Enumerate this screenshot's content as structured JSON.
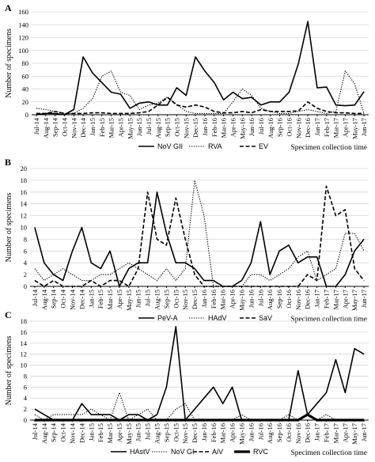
{
  "chart_data": [
    {
      "type": "line",
      "panel_label": "A",
      "ylabel": "Number of specimens",
      "xlabel": "Specimen collection time",
      "ylim": [
        0,
        160
      ],
      "ytick_step": 20,
      "grid": "horizontal",
      "legend_position": "bottom",
      "categories": [
        "Jul-14",
        "Aug-14",
        "Sep-14",
        "Oct-14",
        "Nov-14",
        "Dec-14",
        "Jan-15",
        "Feb-15",
        "Mar-15",
        "Apr-15",
        "May-15",
        "Jun-15",
        "Jul-15",
        "Aug-15",
        "Sep-15",
        "Oct-15",
        "Nov-15",
        "Dec-15",
        "Jan-16",
        "Feb-16",
        "Mar-16",
        "Apr-16",
        "May-16",
        "Jun-16",
        "Jul-16",
        "Aug-16",
        "Sep-16",
        "Oct-16",
        "Nov-16",
        "Dec-16",
        "Jan-17",
        "Feb-17",
        "Mar-17",
        "Apr-17",
        "May-17",
        "Jun-17"
      ],
      "series": [
        {
          "name": "NoV GII",
          "style": "solid",
          "values": [
            0,
            2,
            2,
            0,
            8,
            90,
            65,
            50,
            35,
            32,
            10,
            18,
            20,
            15,
            15,
            42,
            30,
            90,
            68,
            50,
            23,
            35,
            25,
            27,
            15,
            20,
            20,
            35,
            80,
            145,
            42,
            43,
            15,
            14,
            15,
            36
          ]
        },
        {
          "name": "RVA",
          "style": "dotted",
          "values": [
            10,
            8,
            5,
            2,
            2,
            10,
            25,
            60,
            68,
            35,
            30,
            8,
            15,
            18,
            28,
            16,
            5,
            2,
            2,
            2,
            2,
            20,
            40,
            30,
            10,
            5,
            2,
            2,
            5,
            8,
            5,
            2,
            5,
            68,
            48,
            2
          ]
        },
        {
          "name": "EV",
          "style": "dashed",
          "values": [
            2,
            2,
            5,
            2,
            2,
            2,
            3,
            3,
            2,
            2,
            2,
            3,
            5,
            15,
            27,
            15,
            12,
            15,
            12,
            5,
            3,
            3,
            5,
            3,
            8,
            5,
            5,
            5,
            6,
            20,
            10,
            5,
            3,
            3,
            2,
            2
          ]
        }
      ]
    },
    {
      "type": "line",
      "panel_label": "B",
      "ylabel": "Number of specimens",
      "xlabel": "Specimen collection time",
      "ylim": [
        0,
        20
      ],
      "ytick_step": 2,
      "grid": "horizontal",
      "legend_position": "bottom",
      "categories": [
        "Jul-14",
        "Aug-14",
        "Sep-14",
        "Oct-14",
        "Nov-14",
        "Dec-14",
        "Jan-15",
        "Feb-15",
        "Mar-15",
        "Apr-15",
        "May-15",
        "Jun-15",
        "Jul-15",
        "Aug-15",
        "Sep-15",
        "Oct-15",
        "Nov-15",
        "Dec-15",
        "Jan-16",
        "Feb-16",
        "Mar-16",
        "Apr-16",
        "May-16",
        "Jun-16",
        "Jul-16",
        "Aug-16",
        "Sep-16",
        "Oct-16",
        "Nov-16",
        "Dec-16",
        "Jan-17",
        "Feb-17",
        "Mar-17",
        "Apr-17",
        "May-17",
        "Jun-17"
      ],
      "series": [
        {
          "name": "PeV-A",
          "style": "solid",
          "values": [
            10,
            4,
            2,
            1,
            6,
            10,
            4,
            3,
            6,
            0,
            3,
            4,
            4,
            16,
            9,
            4,
            4,
            3,
            1,
            1,
            0,
            0,
            1,
            4,
            11,
            2,
            6,
            7,
            4,
            5,
            5,
            0,
            0,
            2,
            6,
            8
          ]
        },
        {
          "name": "HAdV",
          "style": "dotted",
          "values": [
            3,
            1,
            2,
            3,
            2,
            1,
            1,
            2,
            2,
            3,
            4,
            3,
            2,
            1,
            3,
            1,
            3,
            18,
            12,
            0,
            0,
            0,
            0,
            2,
            2,
            1,
            2,
            3,
            5,
            6,
            1,
            2,
            3,
            9,
            9,
            6
          ]
        },
        {
          "name": "SaV",
          "style": "dashed",
          "values": [
            1,
            0,
            1,
            0,
            0,
            0,
            1,
            0,
            1,
            1,
            0,
            3,
            16,
            8,
            7,
            15,
            8,
            2,
            0,
            0,
            0,
            0,
            0,
            0,
            0,
            0,
            0,
            0,
            0,
            2,
            1,
            17,
            12,
            13,
            3,
            1
          ]
        }
      ]
    },
    {
      "type": "line",
      "panel_label": "C",
      "ylabel": "Number of specimens",
      "xlabel": "Specimen collection time",
      "ylim": [
        0,
        18
      ],
      "ytick_step": 2,
      "grid": "horizontal",
      "legend_position": "bottom",
      "categories": [
        "Jul-14",
        "Aug-14",
        "Sep-14",
        "Oct-14",
        "Nov-14",
        "Dec-14",
        "Jan-15",
        "Feb-15",
        "Mar-15",
        "Apr-15",
        "May-15",
        "Jun-15",
        "Jul-15",
        "Aug-15",
        "Sep-15",
        "Oct-15",
        "Nov-15",
        "Dec-15",
        "Jan-16",
        "Feb-16",
        "Mar-16",
        "Apr-16",
        "May-16",
        "Jun-16",
        "Jul-16",
        "Aug-16",
        "Sep-16",
        "Oct-16",
        "Nov-16",
        "Dec-16",
        "Jan-17",
        "Feb-17",
        "Mar-17",
        "Apr-17",
        "May-17",
        "Jun-17"
      ],
      "series": [
        {
          "name": "HAstV",
          "style": "solid",
          "values": [
            2,
            1,
            0,
            0,
            0,
            3,
            1,
            1,
            1,
            0,
            1,
            1,
            0,
            1,
            6,
            17,
            0,
            2,
            4,
            6,
            3,
            6,
            0,
            0,
            0,
            0,
            0,
            0,
            9,
            1,
            3,
            5,
            11,
            5,
            13,
            12
          ]
        },
        {
          "name": "NoV GI",
          "style": "dotted",
          "values": [
            1,
            0,
            1,
            1,
            1,
            1,
            2,
            1,
            0,
            5,
            0,
            1,
            2,
            0,
            0,
            2,
            3,
            0,
            0,
            0,
            0,
            0,
            1,
            0,
            0,
            0,
            0,
            1,
            0,
            1,
            0,
            1,
            0,
            0,
            0,
            0
          ]
        },
        {
          "name": "AiV",
          "style": "dashed",
          "values": [
            0,
            0,
            0,
            0,
            0,
            0,
            0,
            0,
            0,
            0,
            0,
            0,
            0,
            0,
            0,
            0,
            0,
            0,
            0,
            0,
            0,
            0,
            0,
            0,
            0,
            0,
            0,
            0,
            0,
            1,
            0,
            0,
            0,
            0,
            0,
            0
          ]
        },
        {
          "name": "RVC",
          "style": "thick",
          "values": [
            0,
            0,
            0,
            0,
            0,
            0,
            0,
            0,
            0,
            0,
            0,
            0,
            0,
            0,
            0,
            0,
            0,
            0,
            0,
            0,
            0,
            0,
            0,
            0,
            0,
            0,
            0,
            0,
            0,
            1,
            0,
            0,
            0,
            0,
            0,
            0
          ]
        }
      ]
    }
  ]
}
